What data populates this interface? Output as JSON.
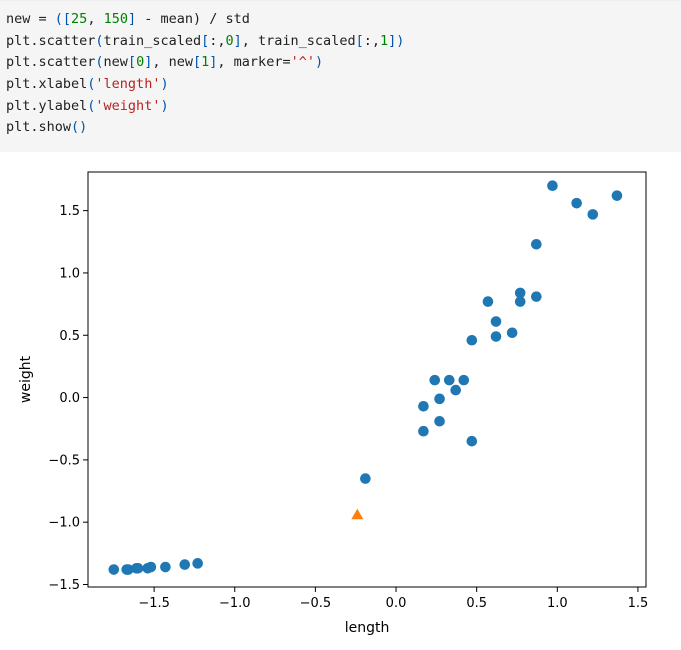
{
  "code_cell": {
    "lines": [
      [
        {
          "t": "new = ",
          "c": ""
        },
        {
          "t": "([",
          "c": "paren"
        },
        {
          "t": "25",
          "c": "num"
        },
        {
          "t": ", ",
          "c": ""
        },
        {
          "t": "150",
          "c": "num"
        },
        {
          "t": "]",
          "c": "paren"
        },
        {
          "t": " - mean) / std",
          "c": ""
        }
      ],
      [
        {
          "t": "plt.scatter",
          "c": ""
        },
        {
          "t": "(",
          "c": "paren"
        },
        {
          "t": "train_scaled",
          "c": ""
        },
        {
          "t": "[",
          "c": "paren"
        },
        {
          "t": ":,",
          "c": ""
        },
        {
          "t": "0",
          "c": "num"
        },
        {
          "t": "]",
          "c": "paren"
        },
        {
          "t": ", train_scaled",
          "c": ""
        },
        {
          "t": "[",
          "c": "paren"
        },
        {
          "t": ":,",
          "c": ""
        },
        {
          "t": "1",
          "c": "num"
        },
        {
          "t": "])",
          "c": "paren"
        }
      ],
      [
        {
          "t": "plt.scatter",
          "c": ""
        },
        {
          "t": "(",
          "c": "paren"
        },
        {
          "t": "new",
          "c": ""
        },
        {
          "t": "[",
          "c": "paren"
        },
        {
          "t": "0",
          "c": "num"
        },
        {
          "t": "]",
          "c": "paren"
        },
        {
          "t": ", new",
          "c": ""
        },
        {
          "t": "[",
          "c": "paren"
        },
        {
          "t": "1",
          "c": "num"
        },
        {
          "t": "]",
          "c": "paren"
        },
        {
          "t": ", marker=",
          "c": ""
        },
        {
          "t": "'^'",
          "c": "str"
        },
        {
          "t": ")",
          "c": "paren"
        }
      ],
      [
        {
          "t": "plt.xlabel",
          "c": ""
        },
        {
          "t": "(",
          "c": "paren"
        },
        {
          "t": "'length'",
          "c": "str"
        },
        {
          "t": ")",
          "c": "paren"
        }
      ],
      [
        {
          "t": "plt.ylabel",
          "c": ""
        },
        {
          "t": "(",
          "c": "paren"
        },
        {
          "t": "'weight'",
          "c": "str"
        },
        {
          "t": ")",
          "c": "paren"
        }
      ],
      [
        {
          "t": "plt.show",
          "c": ""
        },
        {
          "t": "()",
          "c": "paren"
        }
      ]
    ]
  },
  "colors": {
    "series_blue": "#1f77b4",
    "series_orange": "#ff7f0e",
    "code_background": "#f5f5f5"
  },
  "chart_data": {
    "type": "scatter",
    "title": "",
    "xlabel": "length",
    "ylabel": "weight",
    "xlim": [
      -1.91,
      1.55
    ],
    "ylim": [
      -1.52,
      1.81
    ],
    "xticks": [
      -1.5,
      -1.0,
      -0.5,
      0.0,
      0.5,
      1.0,
      1.5
    ],
    "yticks": [
      -1.5,
      -1.0,
      -0.5,
      0.0,
      0.5,
      1.0,
      1.5
    ],
    "xtick_labels": [
      "−1.5",
      "−1.0",
      "−0.5",
      "0.0",
      "0.5",
      "1.0",
      "1.5"
    ],
    "ytick_labels": [
      "−1.5",
      "−1.0",
      "−0.5",
      "0.0",
      "0.5",
      "1.0",
      "1.5"
    ],
    "grid": false,
    "series": [
      {
        "marker": "circle",
        "color": "#1f77b4",
        "points": [
          [
            -1.75,
            -1.38
          ],
          [
            -1.67,
            -1.38
          ],
          [
            -1.66,
            -1.38
          ],
          [
            -1.61,
            -1.37
          ],
          [
            -1.6,
            -1.37
          ],
          [
            -1.54,
            -1.37
          ],
          [
            -1.52,
            -1.36
          ],
          [
            -1.43,
            -1.36
          ],
          [
            -1.31,
            -1.34
          ],
          [
            -1.23,
            -1.33
          ],
          [
            -0.19,
            -0.65
          ],
          [
            0.17,
            -0.27
          ],
          [
            0.17,
            -0.07
          ],
          [
            0.24,
            0.14
          ],
          [
            0.27,
            -0.01
          ],
          [
            0.27,
            -0.19
          ],
          [
            0.33,
            0.14
          ],
          [
            0.37,
            0.06
          ],
          [
            0.42,
            0.14
          ],
          [
            0.47,
            0.46
          ],
          [
            0.47,
            -0.35
          ],
          [
            0.57,
            0.77
          ],
          [
            0.62,
            0.61
          ],
          [
            0.62,
            0.49
          ],
          [
            0.72,
            0.52
          ],
          [
            0.77,
            0.84
          ],
          [
            0.77,
            0.77
          ],
          [
            0.87,
            0.81
          ],
          [
            0.87,
            1.23
          ],
          [
            0.97,
            1.7
          ],
          [
            1.12,
            1.56
          ],
          [
            1.22,
            1.47
          ],
          [
            1.37,
            1.62
          ]
        ]
      },
      {
        "marker": "triangle-up",
        "color": "#ff7f0e",
        "points": [
          [
            -0.24,
            -0.94
          ]
        ]
      }
    ]
  }
}
